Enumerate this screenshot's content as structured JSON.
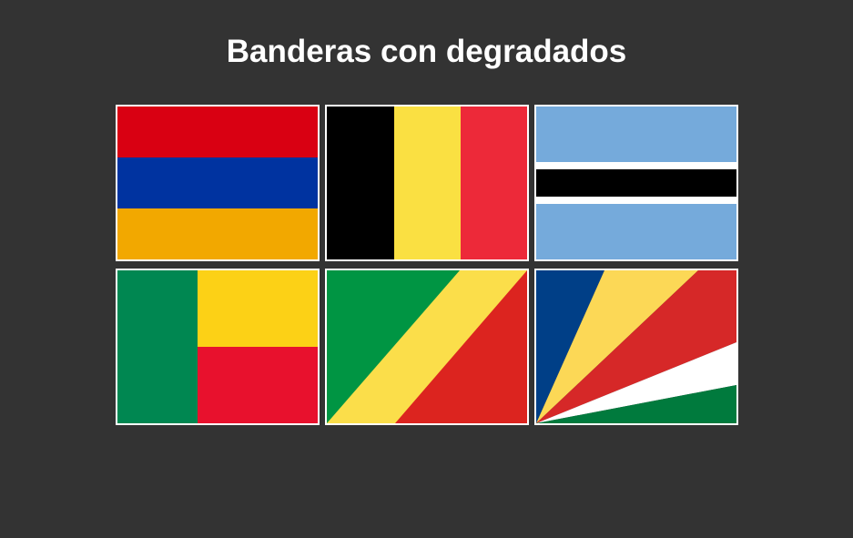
{
  "page": {
    "title": "Banderas con degradados"
  },
  "colors": {
    "background": "#333333",
    "border": "#ffffff"
  },
  "flags": [
    {
      "name": "armenia",
      "colors": [
        "#d90012",
        "#0033a0",
        "#f2a800"
      ]
    },
    {
      "name": "belgium",
      "colors": [
        "#000000",
        "#fae042",
        "#ed2939"
      ]
    },
    {
      "name": "botswana",
      "colors": [
        "#75aadb",
        "#ffffff",
        "#000000"
      ]
    },
    {
      "name": "benin",
      "colors": [
        "#008751",
        "#fcd116",
        "#e8112d"
      ]
    },
    {
      "name": "republic-of-the-congo",
      "colors": [
        "#009543",
        "#fbde4a",
        "#dc241f"
      ]
    },
    {
      "name": "seychelles",
      "colors": [
        "#003f87",
        "#fcd856",
        "#d62828",
        "#ffffff",
        "#007a3d"
      ]
    }
  ]
}
